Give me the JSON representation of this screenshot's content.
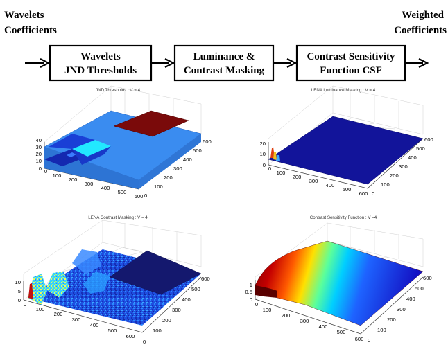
{
  "flow": {
    "input_label_line1": "Wavelets",
    "input_label_line2": "Coefficients",
    "output_label_line1": "Weighted",
    "output_label_line2": "Coefficients",
    "stages": [
      {
        "line1": "Wavelets",
        "line2": "JND Thresholds"
      },
      {
        "line1": "Luminance &",
        "line2": "Contrast Masking"
      },
      {
        "line1": "Contrast Sensitivity",
        "line2": "Function CSF"
      }
    ]
  },
  "plots": [
    {
      "title": "JND Thresholds : V = 4",
      "x_ticks": [
        "0",
        "100",
        "200",
        "300",
        "400",
        "500",
        "600"
      ],
      "y_ticks": [
        "0",
        "100",
        "200",
        "300",
        "400",
        "500",
        "600"
      ],
      "z_ticks": [
        "0",
        "10",
        "20",
        "30",
        "40"
      ],
      "colors": {
        "base": "#3a8cf0",
        "high": "#7a0a0a",
        "mid": "#22e8ff",
        "low": "#1a3fd6",
        "dark": "#1428b0"
      }
    },
    {
      "title": "LENA Luminance Masking : V = 4",
      "x_ticks": [
        "0",
        "100",
        "200",
        "300",
        "400",
        "500",
        "600"
      ],
      "y_ticks": [
        "0",
        "100",
        "200",
        "300",
        "400",
        "500",
        "600"
      ],
      "z_ticks": [
        "0",
        "10",
        "20"
      ],
      "colors": {
        "base": "#12149a",
        "spike": "#e04010"
      }
    },
    {
      "title": "LENA Contrast Masking : V = 4",
      "x_ticks": [
        "0",
        "100",
        "200",
        "300",
        "400",
        "500",
        "600"
      ],
      "y_ticks": [
        "0",
        "100",
        "200",
        "300",
        "400",
        "500",
        "600"
      ],
      "z_ticks": [
        "0",
        "5",
        "10"
      ],
      "colors": {
        "base": "#1b3fd8",
        "flat": "#14186e",
        "spike": "#c01010"
      }
    },
    {
      "title": "Contrast Sensitivity Function : V =4",
      "x_ticks": [
        "0",
        "100",
        "200",
        "300",
        "400",
        "500",
        "600"
      ],
      "y_ticks": [
        "0",
        "100",
        "200",
        "300",
        "400",
        "500",
        "600"
      ],
      "z_ticks": [
        "0",
        "0.5",
        "1"
      ],
      "colors": {
        "peak": "#8a0000",
        "far": "#1010c8"
      }
    }
  ]
}
